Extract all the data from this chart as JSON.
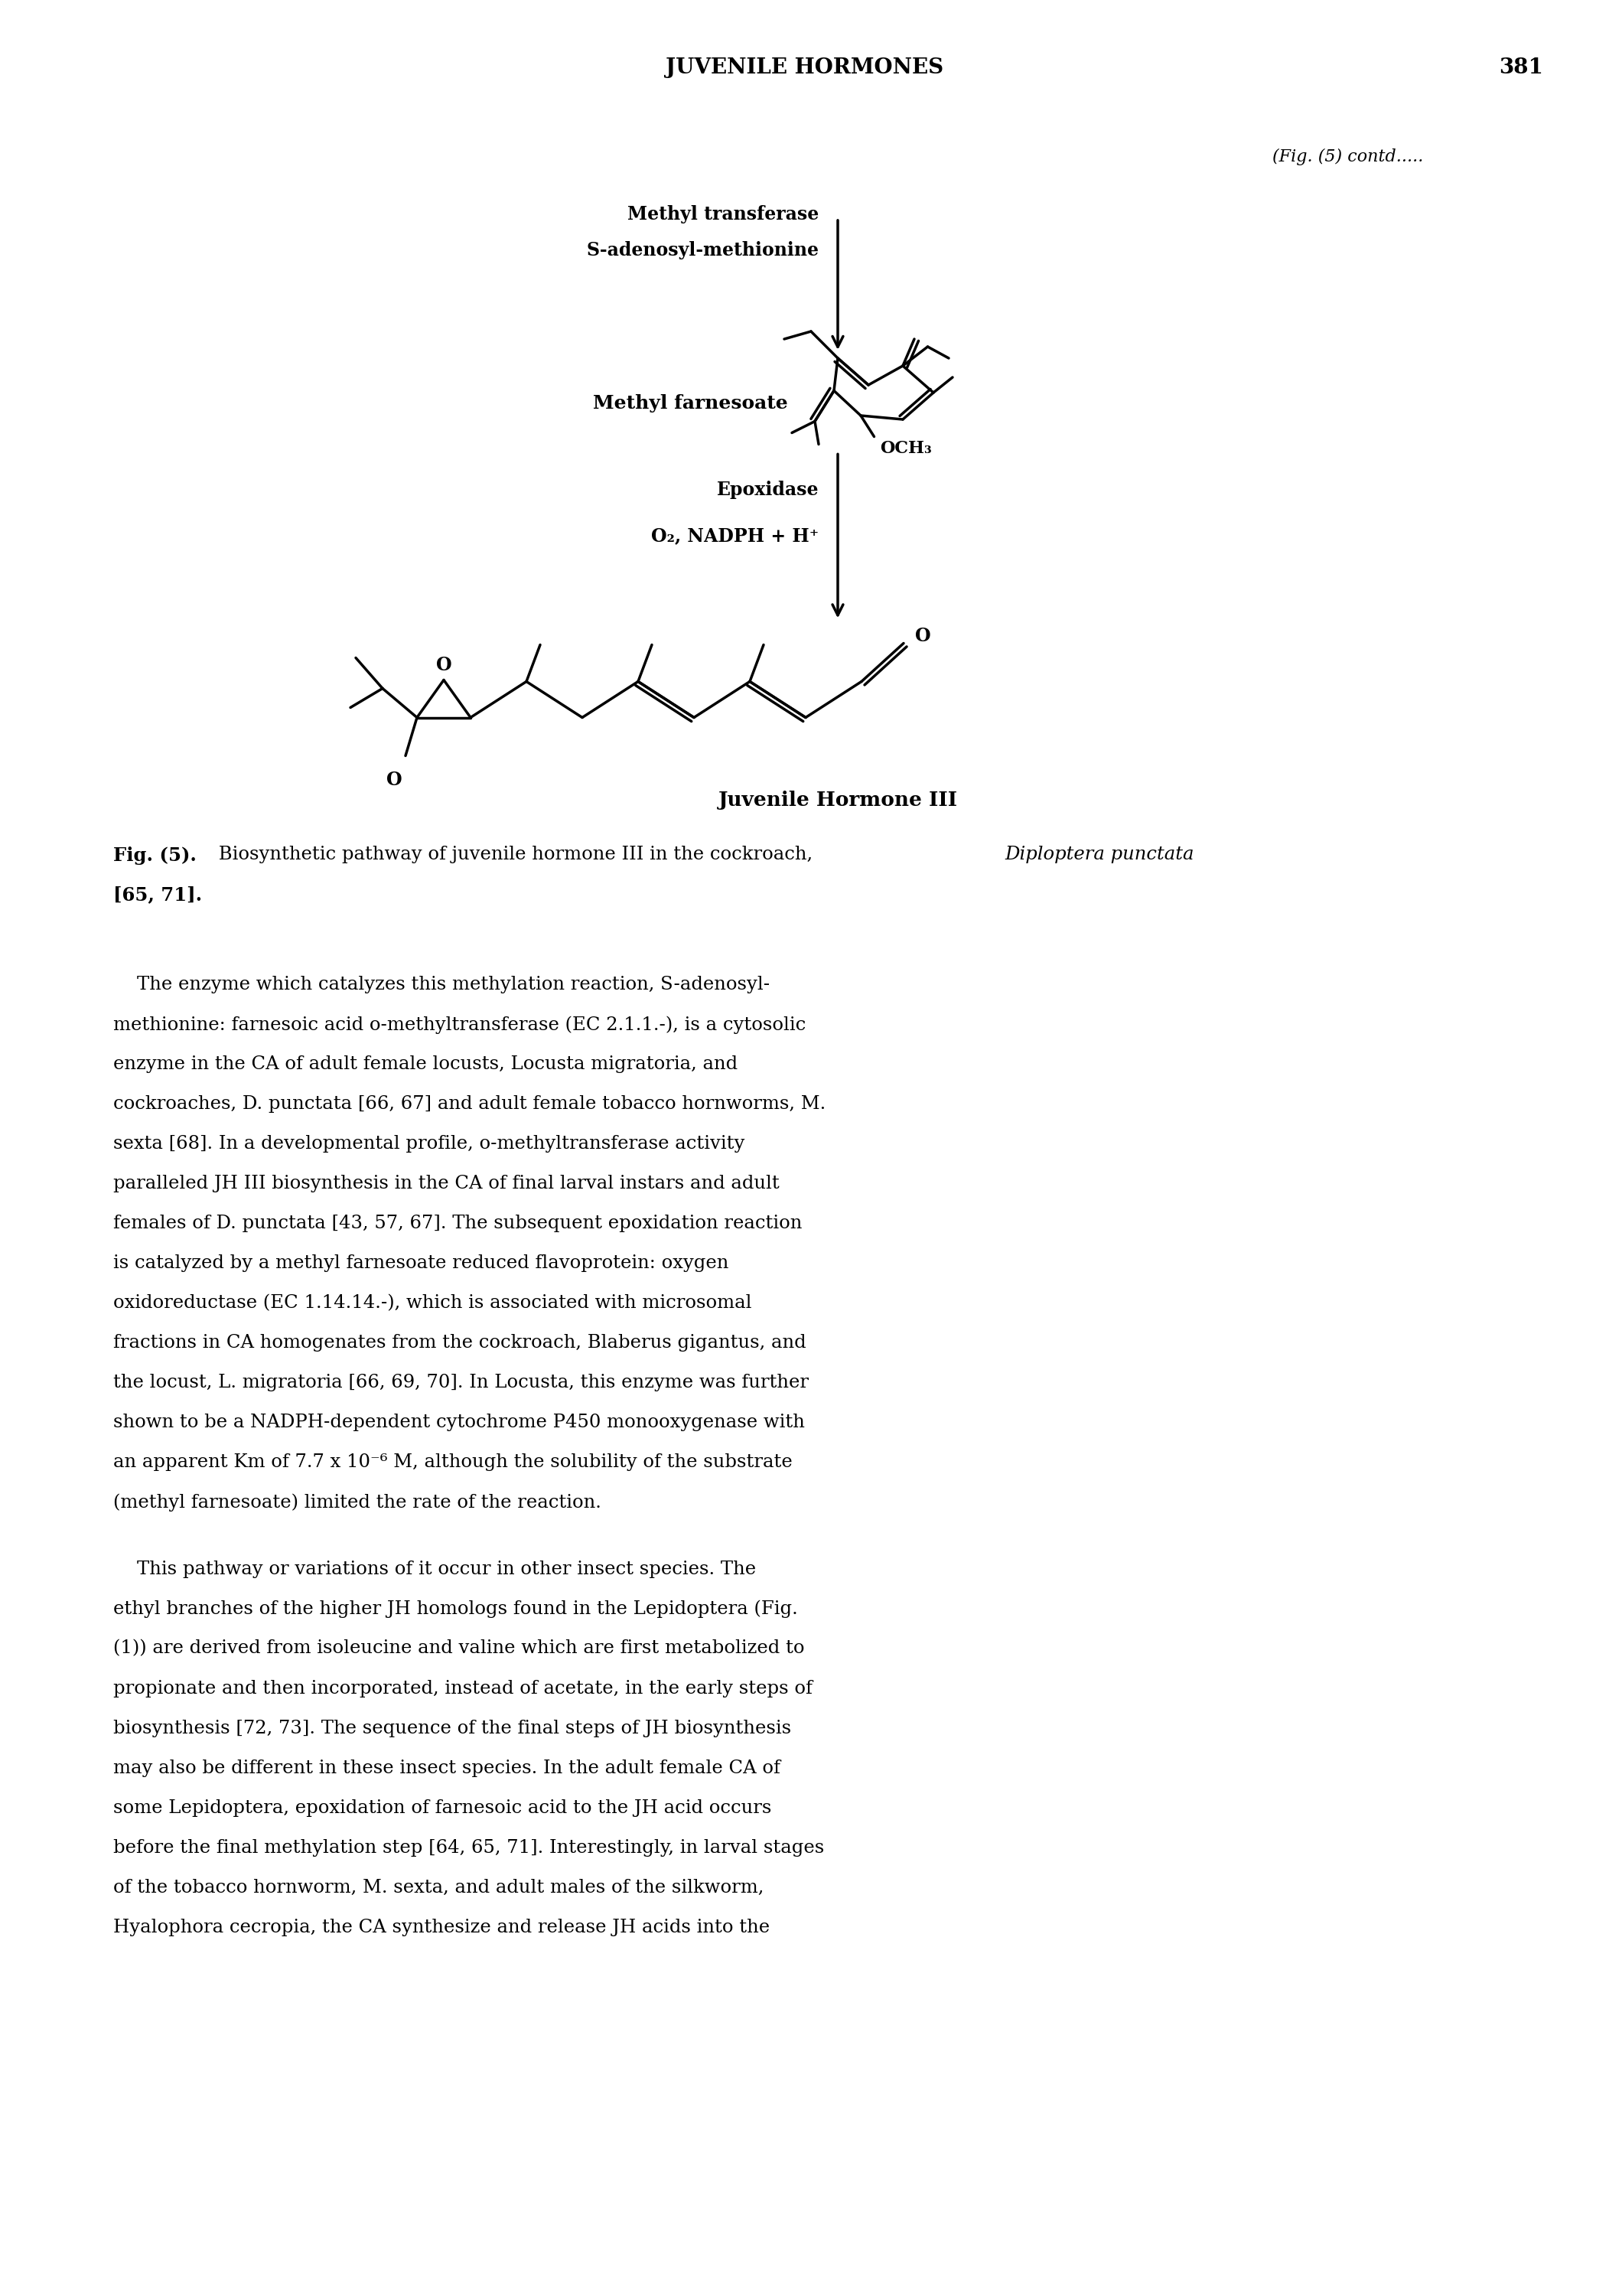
{
  "page_header_center": "JUVENILE HORMONES",
  "page_number": "381",
  "fig_contd": "(Fig. (5) contd.....",
  "arrow1_label1": "Methyl transferase",
  "arrow1_label2": "S-adenosyl-methionine",
  "methyl_farnesoate_label": "Methyl farnesoate",
  "arrow2_label1": "Epoxidase",
  "arrow2_label2": "O₂, NADPH + H⁺",
  "jh_label": "Juvenile Hormone III",
  "fig_caption_bold": "Fig. (5).",
  "fig_caption_normal": " Biosynthetic pathway of juvenile hormone III in the cockroach, ",
  "fig_caption_italic": "Diploptera punctata",
  "fig_caption_end": "[65, 71].",
  "body1_line1": "    The enzyme which catalyzes this methylation reaction, S-adenosyl-",
  "body1_line2": "methionine: farnesoic acid o-methyltransferase (EC 2.1.1.-), is a cytosolic",
  "body1_line3": "enzyme in the CA of adult female locusts, Locusta migratoria, and",
  "body1_line4": "cockroaches, D. punctata [66, 67] and adult female tobacco hornworms, M.",
  "body1_line5": "sexta [68]. In a developmental profile, o-methyltransferase activity",
  "body1_line6": "paralleled JH III biosynthesis in the CA of final larval instars and adult",
  "body1_line7": "females of D. punctata [43, 57, 67]. The subsequent epoxidation reaction",
  "body1_line8": "is catalyzed by a methyl farnesoate reduced flavoprotein: oxygen",
  "body1_line9": "oxidoreductase (EC 1.14.14.-), which is associated with microsomal",
  "body1_line10": "fractions in CA homogenates from the cockroach, Blaberus gigantus, and",
  "body1_line11": "the locust, L. migratoria [66, 69, 70]. In Locusta, this enzyme was further",
  "body1_line12": "shown to be a NADPH-dependent cytochrome P450 monooxygenase with",
  "body1_line13": "an apparent Km of 7.7 x 10⁻⁶ M, although the solubility of the substrate",
  "body1_line14": "(methyl farnesoate) limited the rate of the reaction.",
  "body2_line1": "    This pathway or variations of it occur in other insect species. The",
  "body2_line2": "ethyl branches of the higher JH homologs found in the Lepidoptera (Fig.",
  "body2_line3": "(1)) are derived from isoleucine and valine which are first metabolized to",
  "body2_line4": "propionate and then incorporated, instead of acetate, in the early steps of",
  "body2_line5": "biosynthesis [72, 73]. The sequence of the final steps of JH biosynthesis",
  "body2_line6": "may also be different in these insect species. In the adult female CA of",
  "body2_line7": "some Lepidoptera, epoxidation of farnesoic acid to the JH acid occurs",
  "body2_line8": "before the final methylation step [64, 65, 71]. Interestingly, in larval stages",
  "body2_line9": "of the tobacco hornworm, M. sexta, and adult males of the silkworm,",
  "body2_line10": "Hyalophora cecropia, the CA synthesize and release JH acids into the",
  "background_color": "#ffffff",
  "text_color": "#000000",
  "lw": 2.5
}
